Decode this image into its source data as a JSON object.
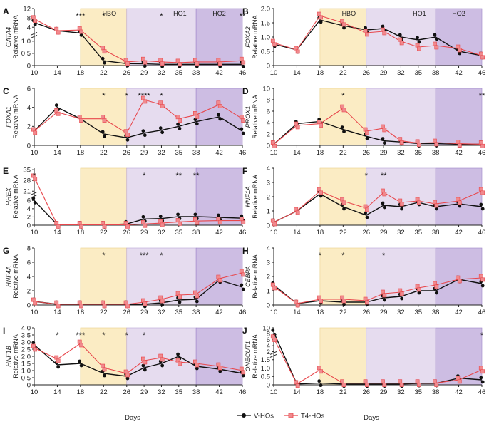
{
  "figure": {
    "x_title": "Days",
    "phases": [
      "HBO",
      "HO1",
      "HO2"
    ],
    "colors": {
      "v_series": "#111111",
      "t4_series": "#e8474c",
      "t4_fill": "#f08a8e",
      "hbo": "#fbecc4",
      "ho1": "#e6dcef",
      "ho2": "#cdbde3"
    },
    "legend": [
      {
        "name": "V-HOs",
        "marker": "circle"
      },
      {
        "name": "T4-HOs",
        "marker": "square"
      }
    ]
  },
  "chart_data": [
    {
      "panel": "A",
      "type": "line",
      "gene": "GATA4",
      "ylabel": "Relative mRNA",
      "x": [
        10,
        14,
        18,
        22,
        26,
        29,
        32,
        35,
        38,
        42,
        46
      ],
      "yticks_low": [
        "0",
        "0.5",
        "1.0"
      ],
      "yticks_high": [
        "4",
        "8",
        "12"
      ],
      "ylim_low": [
        0,
        1.1
      ],
      "ylim_high": [
        1.5,
        12
      ],
      "series": [
        {
          "name": "V-HOs",
          "values": [
            6.0,
            2.5,
            1.5,
            0.2,
            0.08,
            0.07,
            0.05,
            0.05,
            0.05,
            0.05,
            0.05
          ]
        },
        {
          "name": "T4-HOs",
          "values": [
            7.5,
            2.5,
            2.8,
            0.65,
            0.15,
            0.2,
            0.15,
            0.12,
            0.15,
            0.15,
            0.2
          ]
        }
      ],
      "stars": [
        {
          "x": 18,
          "text": "***"
        },
        {
          "x": 22,
          "text": "*"
        },
        {
          "x": 32,
          "text": "*"
        },
        {
          "x": 46,
          "text": "**"
        }
      ]
    },
    {
      "panel": "B",
      "type": "line",
      "gene": "FOXA2",
      "ylabel": "Relative mRNA",
      "x": [
        10,
        14,
        18,
        22,
        26,
        29,
        32,
        35,
        38,
        42,
        46
      ],
      "yticks": [
        "0",
        "0.5",
        "1.0",
        "1.5",
        "2.0"
      ],
      "ylim": [
        0,
        2.0
      ],
      "series": [
        {
          "name": "V-HOs",
          "values": [
            0.75,
            0.55,
            1.6,
            1.4,
            1.25,
            1.3,
            1.0,
            0.9,
            1.0,
            0.5,
            0.35
          ]
        },
        {
          "name": "T4-HOs",
          "values": [
            0.8,
            0.55,
            1.75,
            1.5,
            1.15,
            1.2,
            0.85,
            0.65,
            0.7,
            0.6,
            0.35
          ]
        }
      ],
      "stars": []
    },
    {
      "panel": "C",
      "type": "line",
      "gene": "FOXA1",
      "ylabel": "Relative mRNA",
      "x": [
        10,
        14,
        18,
        22,
        26,
        29,
        32,
        35,
        38,
        42,
        46
      ],
      "yticks": [
        "0",
        "2",
        "4",
        "6"
      ],
      "ylim": [
        0,
        6
      ],
      "series": [
        {
          "name": "V-HOs",
          "values": [
            1.5,
            4.0,
            2.8,
            1.2,
            0.8,
            1.3,
            1.6,
            2.0,
            2.5,
            3.0,
            1.5
          ]
        },
        {
          "name": "T4-HOs",
          "values": [
            1.5,
            3.5,
            2.8,
            2.8,
            1.3,
            4.8,
            4.3,
            2.8,
            3.2,
            4.3,
            2.8
          ]
        }
      ],
      "stars": [
        {
          "x": 22,
          "text": "*"
        },
        {
          "x": 26,
          "text": "*"
        },
        {
          "x": 29,
          "text": "****"
        },
        {
          "x": 32,
          "text": "*"
        }
      ]
    },
    {
      "panel": "D",
      "type": "line",
      "gene": "PROX1",
      "ylabel": "Relative mRNA",
      "x": [
        10,
        14,
        18,
        22,
        26,
        29,
        32,
        35,
        38,
        42,
        46
      ],
      "yticks": [
        "0",
        "2",
        "4",
        "6",
        "8",
        "10"
      ],
      "ylim": [
        0,
        10
      ],
      "series": [
        {
          "name": "V-HOs",
          "values": [
            0.2,
            3.8,
            4.2,
            2.8,
            1.6,
            0.8,
            0.6,
            0.3,
            0.3,
            0.2,
            0.2
          ]
        },
        {
          "name": "T4-HOs",
          "values": [
            0.2,
            3.5,
            3.8,
            6.5,
            2.5,
            3.0,
            0.8,
            0.4,
            0.5,
            0.3,
            0.2
          ]
        }
      ],
      "stars": [
        {
          "x": 22,
          "text": "*"
        },
        {
          "x": 46,
          "text": "**"
        }
      ]
    },
    {
      "panel": "E",
      "type": "line",
      "gene": "HHEX",
      "ylabel": "Relative mRNA",
      "x": [
        10,
        14,
        18,
        22,
        26,
        29,
        32,
        35,
        38,
        42,
        46
      ],
      "yticks_low": [
        "0",
        "2",
        "4",
        "6"
      ],
      "yticks_high": [
        "21",
        "28",
        "35"
      ],
      "ylim_low": [
        0,
        6.5
      ],
      "ylim_high": [
        20,
        36
      ],
      "series": [
        {
          "name": "V-HOs",
          "values": [
            6.0,
            0.1,
            0.1,
            0.1,
            0.3,
            1.5,
            1.6,
            2.1,
            2.1,
            1.9,
            1.7
          ]
        },
        {
          "name": "T4-HOs",
          "values": [
            30,
            0.1,
            0.1,
            0.1,
            0.1,
            0.3,
            0.5,
            0.8,
            1.0,
            1.1,
            1.1
          ]
        }
      ],
      "stars": [
        {
          "x": 10,
          "text": "*"
        },
        {
          "x": 29,
          "text": "*"
        },
        {
          "x": 35,
          "text": "**"
        },
        {
          "x": 38,
          "text": "**"
        }
      ]
    },
    {
      "panel": "F",
      "type": "line",
      "gene": "HNF1A",
      "ylabel": "Relative mRNA",
      "x": [
        10,
        14,
        18,
        22,
        26,
        29,
        32,
        35,
        38,
        42,
        46
      ],
      "yticks": [
        "0",
        "1",
        "2",
        "3",
        "4"
      ],
      "ylim": [
        0,
        4
      ],
      "series": [
        {
          "name": "V-HOs",
          "values": [
            0.2,
            1.0,
            2.2,
            1.3,
            0.7,
            1.4,
            1.3,
            1.6,
            1.3,
            1.5,
            1.3
          ]
        },
        {
          "name": "T4-HOs",
          "values": [
            0.2,
            1.0,
            2.4,
            1.7,
            1.2,
            2.3,
            1.6,
            1.7,
            1.5,
            1.7,
            2.4
          ]
        }
      ],
      "stars": [
        {
          "x": 26,
          "text": "*"
        },
        {
          "x": 29,
          "text": "**"
        }
      ]
    },
    {
      "panel": "G",
      "type": "line",
      "gene": "HNF4A",
      "ylabel": "Relative mRNA",
      "x": [
        10,
        14,
        18,
        22,
        26,
        29,
        32,
        35,
        38,
        42,
        46
      ],
      "yticks": [
        "0",
        "2",
        "4",
        "6",
        "8"
      ],
      "ylim": [
        0,
        8
      ],
      "series": [
        {
          "name": "V-HOs",
          "values": [
            0.5,
            0.1,
            0.1,
            0.1,
            0.1,
            0.1,
            0.3,
            0.7,
            0.8,
            3.5,
            2.5
          ]
        },
        {
          "name": "T4-HOs",
          "values": [
            0.5,
            0.1,
            0.1,
            0.1,
            0.1,
            0.4,
            0.8,
            1.4,
            1.5,
            3.7,
            4.5
          ]
        }
      ],
      "stars": [
        {
          "x": 22,
          "text": "*"
        },
        {
          "x": 29,
          "text": "***"
        },
        {
          "x": 32,
          "text": "*"
        }
      ]
    },
    {
      "panel": "H",
      "type": "line",
      "gene": "CEBPA",
      "ylabel": "Relative mRNA",
      "x": [
        10,
        14,
        18,
        22,
        26,
        29,
        32,
        35,
        38,
        42,
        46
      ],
      "yticks": [
        "0",
        "1",
        "2",
        "3",
        "4"
      ],
      "ylim": [
        0,
        4
      ],
      "series": [
        {
          "name": "V-HOs",
          "values": [
            1.4,
            0.1,
            0.3,
            0.2,
            0.2,
            0.5,
            0.6,
            1.0,
            1.0,
            1.8,
            1.5
          ]
        },
        {
          "name": "T4-HOs",
          "values": [
            1.3,
            0.1,
            0.4,
            0.4,
            0.3,
            0.8,
            0.9,
            1.2,
            1.4,
            1.8,
            1.9
          ]
        }
      ],
      "stars": [
        {
          "x": 18,
          "text": "*"
        },
        {
          "x": 22,
          "text": "*"
        },
        {
          "x": 29,
          "text": "*"
        }
      ]
    },
    {
      "panel": "I",
      "type": "line",
      "gene": "HNF1B",
      "ylabel": "Relative mRNA",
      "x": [
        10,
        14,
        18,
        22,
        26,
        29,
        32,
        35,
        38,
        42,
        46
      ],
      "yticks": [
        "0",
        "0.5",
        "1.0",
        "1.5",
        "2.0",
        "2.5",
        "3.0",
        "3.5",
        "4.0"
      ],
      "ylim": [
        0,
        4
      ],
      "series": [
        {
          "name": "V-HOs",
          "values": [
            2.8,
            1.4,
            1.5,
            0.8,
            0.6,
            1.2,
            1.5,
            2.0,
            1.3,
            1.1,
            0.8
          ]
        },
        {
          "name": "T4-HOs",
          "values": [
            2.6,
            1.8,
            2.9,
            1.2,
            0.8,
            1.7,
            1.9,
            1.6,
            1.5,
            1.3,
            1.0
          ]
        }
      ],
      "stars": [
        {
          "x": 14,
          "text": "*"
        },
        {
          "x": 18,
          "text": "***"
        },
        {
          "x": 22,
          "text": "*"
        },
        {
          "x": 26,
          "text": "*"
        },
        {
          "x": 29,
          "text": "*"
        }
      ]
    },
    {
      "panel": "J",
      "type": "line",
      "gene": "ONECUT1",
      "ylabel": "Relative mRNA",
      "x": [
        10,
        14,
        18,
        22,
        26,
        29,
        32,
        35,
        38,
        42,
        46
      ],
      "yticks_low": [
        "0",
        "0.5",
        "1.0",
        "1.5"
      ],
      "yticks_high": [
        "2",
        "4",
        "6",
        "8",
        "10"
      ],
      "ylim_low": [
        0,
        1.6
      ],
      "ylim_high": [
        1.8,
        10
      ],
      "series": [
        {
          "name": "V-HOs",
          "values": [
            8.5,
            0.05,
            0.1,
            0.05,
            0.05,
            0.05,
            0.05,
            0.08,
            0.08,
            0.4,
            0.3
          ]
        },
        {
          "name": "T4-HOs",
          "values": [
            6.5,
            0.05,
            0.9,
            0.1,
            0.1,
            0.1,
            0.1,
            0.1,
            0.1,
            0.3,
            0.9
          ]
        }
      ],
      "stars": [
        {
          "x": 46,
          "text": "*"
        }
      ]
    }
  ]
}
